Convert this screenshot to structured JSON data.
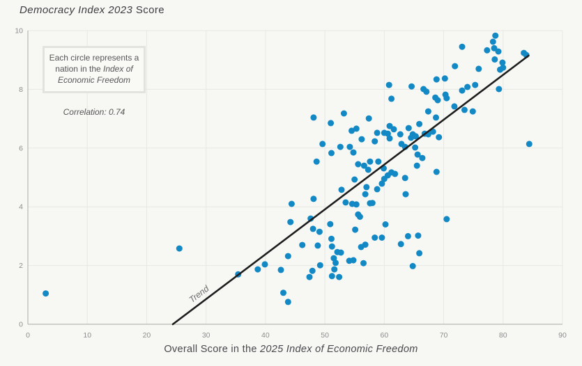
{
  "chart_data": {
    "type": "scatter",
    "title": {
      "italic": "Democracy Index 2023",
      "regular": " Score"
    },
    "xlabel": {
      "regular": "Overall Score in the ",
      "italic": "2025 Index of Economic Freedom"
    },
    "ylabel": "Democracy Index 2023 Score",
    "xlim": [
      0,
      90
    ],
    "ylim": [
      0,
      10
    ],
    "x_ticks": [
      0,
      10,
      20,
      30,
      40,
      50,
      60,
      70,
      80,
      90
    ],
    "y_ticks": [
      0,
      2,
      4,
      6,
      8,
      10
    ],
    "grid": true,
    "annotation": {
      "regular": "Each circle represents a nation in the ",
      "italic": "Index of Economic Freedom"
    },
    "correlation_label": "Correlation: 0.74",
    "trend": {
      "x1": 24.4,
      "y1": 0,
      "x2": 84.3,
      "y2": 9.15,
      "label": "Trend"
    },
    "points": [
      [
        3.0,
        1.05
      ],
      [
        25.5,
        2.58
      ],
      [
        35.4,
        1.7
      ],
      [
        38.7,
        1.87
      ],
      [
        39.9,
        2.04
      ],
      [
        42.6,
        1.85
      ],
      [
        43.0,
        1.07
      ],
      [
        43.8,
        0.76
      ],
      [
        43.8,
        2.32
      ],
      [
        44.2,
        3.48
      ],
      [
        44.4,
        4.1
      ],
      [
        46.2,
        2.7
      ],
      [
        47.4,
        1.61
      ],
      [
        47.9,
        1.82
      ],
      [
        47.6,
        3.6
      ],
      [
        48.0,
        3.25
      ],
      [
        48.8,
        2.68
      ],
      [
        49.1,
        3.15
      ],
      [
        49.2,
        2.01
      ],
      [
        48.1,
        4.27
      ],
      [
        50.9,
        3.41
      ],
      [
        51.1,
        2.91
      ],
      [
        51.2,
        2.65
      ],
      [
        51.5,
        2.25
      ],
      [
        51.6,
        1.87
      ],
      [
        51.2,
        1.64
      ],
      [
        51.8,
        2.09
      ],
      [
        52.1,
        2.46
      ],
      [
        52.4,
        1.61
      ],
      [
        52.7,
        2.44
      ],
      [
        53.5,
        4.15
      ],
      [
        52.8,
        4.58
      ],
      [
        54.1,
        2.16
      ],
      [
        54.8,
        2.18
      ],
      [
        55.1,
        3.22
      ],
      [
        55.9,
        3.66
      ],
      [
        56.1,
        2.63
      ],
      [
        56.5,
        2.08
      ],
      [
        56.8,
        2.71
      ],
      [
        58.0,
        4.13
      ],
      [
        54.6,
        4.1
      ],
      [
        55.3,
        4.08
      ],
      [
        55.6,
        3.74
      ],
      [
        58.4,
        2.95
      ],
      [
        59.6,
        2.95
      ],
      [
        60.2,
        3.4
      ],
      [
        62.8,
        2.73
      ],
      [
        64.0,
        3.0
      ],
      [
        65.7,
        3.02
      ],
      [
        65.9,
        2.42
      ],
      [
        64.8,
        1.98
      ],
      [
        70.5,
        3.58
      ],
      [
        48.6,
        5.54
      ],
      [
        51.1,
        5.83
      ],
      [
        54.2,
        6.04
      ],
      [
        54.8,
        5.85
      ],
      [
        52.6,
        6.04
      ],
      [
        49.6,
        6.14
      ],
      [
        55.6,
        5.45
      ],
      [
        56.6,
        5.4
      ],
      [
        57.3,
        5.26
      ],
      [
        57.6,
        5.54
      ],
      [
        59.0,
        5.54
      ],
      [
        55.0,
        4.93
      ],
      [
        59.9,
        5.31
      ],
      [
        60.0,
        4.95
      ],
      [
        57.0,
        4.67
      ],
      [
        58.8,
        4.6
      ],
      [
        56.8,
        4.43
      ],
      [
        57.6,
        4.12
      ],
      [
        59.6,
        4.79
      ],
      [
        63.6,
        4.43
      ],
      [
        61.2,
        5.17
      ],
      [
        61.8,
        5.12
      ],
      [
        63.5,
        4.98
      ],
      [
        60.6,
        5.07
      ],
      [
        62.9,
        6.14
      ],
      [
        63.5,
        6.04
      ],
      [
        65.2,
        6.02
      ],
      [
        65.6,
        5.78
      ],
      [
        66.4,
        5.66
      ],
      [
        65.5,
        5.4
      ],
      [
        68.8,
        5.19
      ],
      [
        69.2,
        6.37
      ],
      [
        56.2,
        6.3
      ],
      [
        58.4,
        6.23
      ],
      [
        60.9,
        6.33
      ],
      [
        64.5,
        6.35
      ],
      [
        60.9,
        6.75
      ],
      [
        61.6,
        6.64
      ],
      [
        60.6,
        6.49
      ],
      [
        62.7,
        6.47
      ],
      [
        64.1,
        6.68
      ],
      [
        65.9,
        6.82
      ],
      [
        64.8,
        6.47
      ],
      [
        65.3,
        6.4
      ],
      [
        66.8,
        6.49
      ],
      [
        67.4,
        6.47
      ],
      [
        68.2,
        6.56
      ],
      [
        58.8,
        6.52
      ],
      [
        60.0,
        6.52
      ],
      [
        54.5,
        6.59
      ],
      [
        55.3,
        6.66
      ],
      [
        48.1,
        7.04
      ],
      [
        51.0,
        6.85
      ],
      [
        53.2,
        7.18
      ],
      [
        57.4,
        7.01
      ],
      [
        68.7,
        7.04
      ],
      [
        67.4,
        7.25
      ],
      [
        71.8,
        7.42
      ],
      [
        73.5,
        7.3
      ],
      [
        74.9,
        7.25
      ],
      [
        60.8,
        8.15
      ],
      [
        61.2,
        7.68
      ],
      [
        64.6,
        8.1
      ],
      [
        66.6,
        8.01
      ],
      [
        67.1,
        7.92
      ],
      [
        68.6,
        7.72
      ],
      [
        69.0,
        7.63
      ],
      [
        68.8,
        8.34
      ],
      [
        70.2,
        8.37
      ],
      [
        70.3,
        7.82
      ],
      [
        70.5,
        7.7
      ],
      [
        73.1,
        7.96
      ],
      [
        74.0,
        8.08
      ],
      [
        75.3,
        8.15
      ],
      [
        79.3,
        8.01
      ],
      [
        71.9,
        8.79
      ],
      [
        73.1,
        9.45
      ],
      [
        75.9,
        8.7
      ],
      [
        77.3,
        9.33
      ],
      [
        78.3,
        9.62
      ],
      [
        78.5,
        9.4
      ],
      [
        78.6,
        9.02
      ],
      [
        78.7,
        9.83
      ],
      [
        79.2,
        9.29
      ],
      [
        79.9,
        8.91
      ],
      [
        80.0,
        8.74
      ],
      [
        79.5,
        8.67
      ],
      [
        83.5,
        9.24
      ],
      [
        83.9,
        9.17
      ],
      [
        84.4,
        6.14
      ]
    ],
    "colors": {
      "dot": "#1289c4",
      "trend_line": "#1d1d1d",
      "grid_line": "#e7e7e3",
      "axis_line": "#b7b7b3",
      "tick_text": "#8c8c8c",
      "trend_label_text": "#6e6e6e",
      "background": "#f7f7f4"
    }
  }
}
